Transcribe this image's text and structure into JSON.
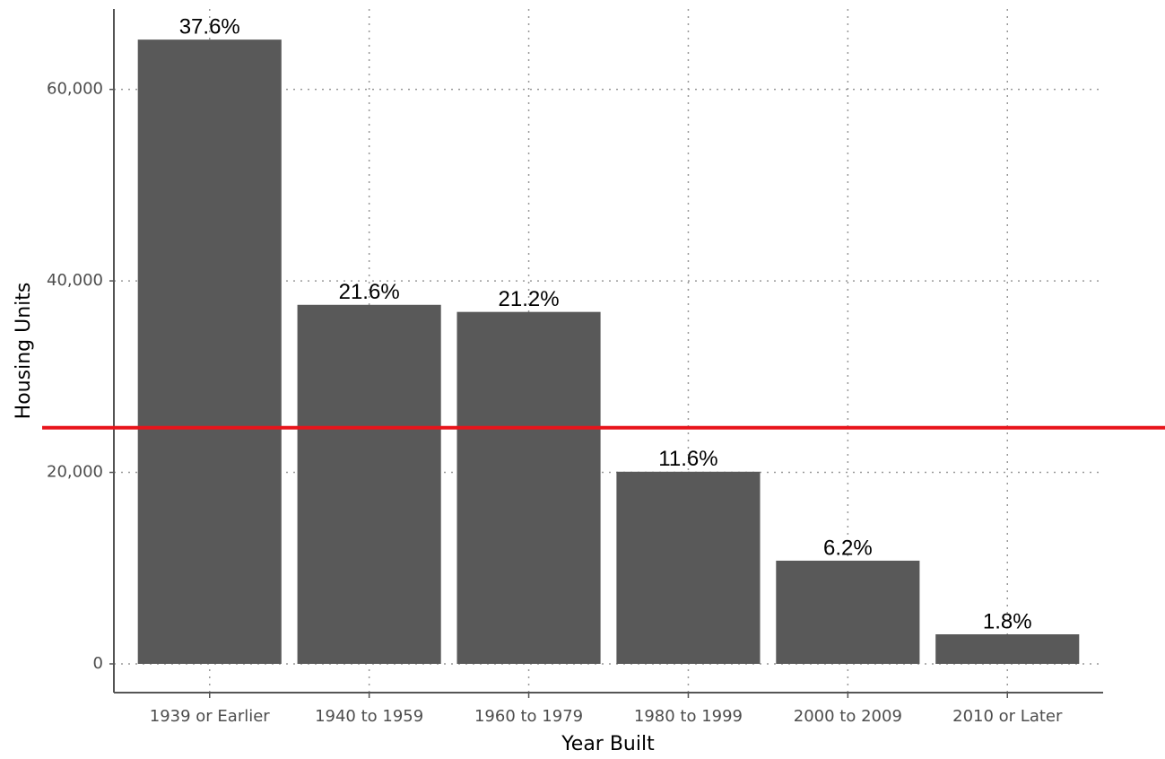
{
  "chart_data": {
    "type": "bar",
    "x_label": "Year Built",
    "y_label": "Housing Units",
    "categories": [
      "1939 or Earlier",
      "1940 to 1959",
      "1960 to 1979",
      "1980 to 1999",
      "2000 to 2009",
      "2010 or Later"
    ],
    "values": [
      65200,
      37500,
      36760,
      20070,
      10780,
      3090
    ],
    "bar_labels": [
      "37.6%",
      "21.6%",
      "21.2%",
      "11.6%",
      "6.2%",
      "1.8%"
    ],
    "color": "#595959",
    "ylim": [
      -3000,
      68400
    ],
    "yticks": [
      0,
      {
        "value": 20000,
        "label": "20,000"
      },
      {
        "value": 40000,
        "label": "40,000"
      },
      {
        "value": 60000,
        "label": "60,000"
      }
    ],
    "grid": true,
    "reference_line": {
      "value": 24660,
      "color": "#e8141b"
    }
  }
}
